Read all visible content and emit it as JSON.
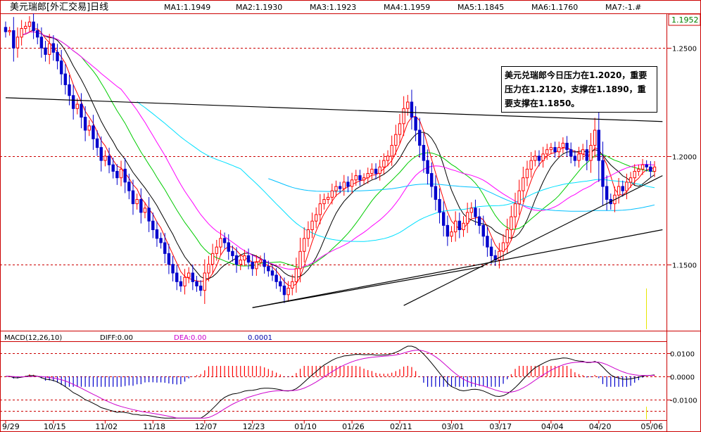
{
  "header": {
    "title": "美元瑞郎[外汇交易]日线",
    "ma": [
      {
        "label": "MA1:1.1949",
        "color": "#ff0000"
      },
      {
        "label": "MA2:1.1930",
        "color": "#000000"
      },
      {
        "label": "MA3:1.1923",
        "color": "#00cc00"
      },
      {
        "label": "MA4:1.1959",
        "color": "#ff00ff"
      },
      {
        "label": "MA5:1.1845",
        "color": "#00e0ff"
      },
      {
        "label": "MA6:1.1760",
        "color": "#00c0ff"
      },
      {
        "label": "MA7:-1.#",
        "color": "#c0c0c0"
      }
    ]
  },
  "annotation": "美元兑瑞郎今日压力在1.2020，重要压力在1.2120，支撑在1.1890，重要支撑在1.1850。",
  "macd_header": {
    "name": "MACD(12,26,10)",
    "diff": "DIFF:0.00",
    "dea": "DEA:0.00",
    "macd_value": "0.0001"
  },
  "colors": {
    "up": "#ff0000",
    "down": "#0000cc",
    "grid": "#cc0000",
    "bg": "#ffffff"
  },
  "chart_data": [
    {
      "type": "candlestick",
      "title": "美元瑞郎[外汇交易]日线",
      "ylim": [
        1.12,
        1.265
      ],
      "y_ticks": [
        "1.2500",
        "1.2000",
        "1.1500"
      ],
      "y_tick_values": [
        1.25,
        1.2,
        1.15
      ],
      "last_price": "1.1952",
      "x_tick_labels": [
        "9/29",
        "10/15",
        "11/02",
        "11/18",
        "12/07",
        "12/23",
        "01/10",
        "01/26",
        "02/11",
        "03/01",
        "03/17",
        "04/04",
        "04/20",
        "05/06"
      ],
      "x_tick_index": [
        0,
        12,
        25,
        37,
        50,
        62,
        75,
        87,
        99,
        112,
        124,
        137,
        149,
        162
      ],
      "closes": [
        1.2575,
        1.258,
        1.25,
        1.255,
        1.259,
        1.26,
        1.262,
        1.258,
        1.255,
        1.25,
        1.247,
        1.252,
        1.248,
        1.244,
        1.238,
        1.233,
        1.228,
        1.222,
        1.224,
        1.218,
        1.212,
        1.214,
        1.208,
        1.204,
        1.198,
        1.2,
        1.196,
        1.193,
        1.19,
        1.194,
        1.188,
        1.184,
        1.178,
        1.18,
        1.174,
        1.176,
        1.17,
        1.166,
        1.162,
        1.16,
        1.155,
        1.15,
        1.146,
        1.142,
        1.14,
        1.144,
        1.146,
        1.142,
        1.14,
        1.138,
        1.146,
        1.15,
        1.155,
        1.158,
        1.162,
        1.16,
        1.156,
        1.154,
        1.15,
        1.152,
        1.154,
        1.151,
        1.148,
        1.151,
        1.152,
        1.149,
        1.147,
        1.145,
        1.142,
        1.14,
        1.136,
        1.139,
        1.142,
        1.148,
        1.156,
        1.162,
        1.166,
        1.17,
        1.173,
        1.178,
        1.18,
        1.181,
        1.184,
        1.186,
        1.185,
        1.188,
        1.186,
        1.189,
        1.191,
        1.189,
        1.19,
        1.192,
        1.194,
        1.192,
        1.195,
        1.198,
        1.2,
        1.205,
        1.21,
        1.215,
        1.222,
        1.225,
        1.218,
        1.212,
        1.205,
        1.198,
        1.192,
        1.186,
        1.18,
        1.174,
        1.168,
        1.163,
        1.165,
        1.17,
        1.166,
        1.169,
        1.174,
        1.176,
        1.172,
        1.168,
        1.163,
        1.158,
        1.154,
        1.152,
        1.156,
        1.16,
        1.166,
        1.172,
        1.178,
        1.184,
        1.19,
        1.194,
        1.198,
        1.2,
        1.198,
        1.201,
        1.203,
        1.204,
        1.202,
        1.204,
        1.206,
        1.203,
        1.2,
        1.198,
        1.201,
        1.203,
        1.198,
        1.205,
        1.212,
        1.198,
        1.186,
        1.18,
        1.178,
        1.182,
        1.186,
        1.184,
        1.188,
        1.19,
        1.193,
        1.194,
        1.196,
        1.195,
        1.193,
        1.195
      ],
      "series": [
        {
          "name": "MA1",
          "color": "#ff0000"
        },
        {
          "name": "MA2",
          "color": "#000000"
        },
        {
          "name": "MA3",
          "color": "#00cc00"
        },
        {
          "name": "MA4",
          "color": "#ff00ff"
        },
        {
          "name": "MA5",
          "color": "#00e0ff"
        },
        {
          "name": "MA6",
          "color": "#00c0ff"
        }
      ],
      "trendlines": [
        {
          "from": [
            0,
            1.227
          ],
          "to": [
            165,
            1.216
          ]
        },
        {
          "from": [
            62,
            1.13
          ],
          "to": [
            120,
            1.149
          ]
        },
        {
          "from": [
            62,
            1.13
          ],
          "to": [
            165,
            1.166
          ]
        },
        {
          "from": [
            100,
            1.131
          ],
          "to": [
            165,
            1.191
          ]
        }
      ]
    },
    {
      "type": "bar",
      "title": "MACD(12,26,10)",
      "ylim": [
        -0.0185,
        0.0145
      ],
      "y_ticks": [
        "0.0100",
        "0.0000",
        "-0.0100"
      ],
      "y_tick_values": [
        0.01,
        0.0,
        -0.01
      ]
    }
  ]
}
